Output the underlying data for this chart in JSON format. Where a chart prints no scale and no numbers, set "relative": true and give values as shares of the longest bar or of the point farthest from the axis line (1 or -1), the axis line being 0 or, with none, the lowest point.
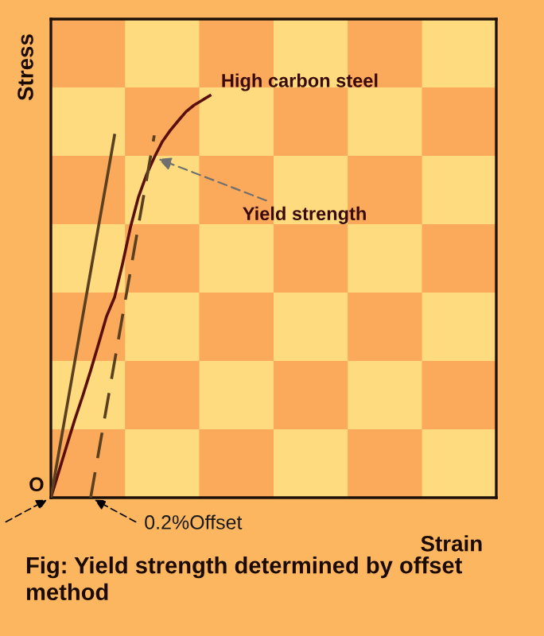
{
  "chart_data": {
    "type": "line",
    "relative": true,
    "xlabel": "Strain",
    "ylabel": "Stress",
    "categories": [
      null,
      null,
      null,
      null,
      null,
      null,
      null,
      null,
      null,
      null,
      null,
      null,
      null,
      null,
      null,
      null,
      null,
      null,
      null,
      null,
      null,
      null,
      null,
      null,
      null,
      null,
      null,
      null,
      null,
      null,
      null,
      null,
      null,
      null,
      null,
      null,
      null,
      null,
      null,
      null,
      null,
      null,
      null,
      null,
      null,
      null,
      null,
      null,
      null,
      null,
      null,
      null,
      null,
      null,
      null,
      null,
      null
    ],
    "series": [
      {
        "name": "High carbon steel",
        "color": "#5a0f0f",
        "line_style": "solid",
        "values": [
          0,
          0.065,
          0.13,
          0.194,
          0.253,
          0.316,
          0.383,
          0.451,
          0.498,
          0.581,
          0.672,
          0.747,
          0.802,
          0.846,
          0.885,
          0.913,
          0.937,
          0.96,
          0.976,
          0.988,
          1.0,
          null,
          null,
          null,
          null,
          null,
          null,
          null,
          null,
          null,
          null,
          null,
          null,
          null,
          null,
          null,
          null,
          null,
          null,
          null,
          null,
          null,
          null,
          null,
          null,
          null,
          null,
          null,
          null,
          null,
          null,
          null,
          null,
          null,
          null,
          null,
          null
        ]
      },
      {
        "color": "#5a4020",
        "line_style": "solid",
        "values": [
          0,
          0.113,
          0.225,
          0.338,
          0.451,
          0.563,
          0.676,
          0.788,
          0.901,
          null,
          null,
          null,
          null,
          null,
          null,
          null,
          null,
          null,
          null,
          null,
          null,
          null,
          null,
          null,
          null,
          null,
          null,
          null,
          null,
          null,
          null,
          null,
          null,
          null,
          null,
          null,
          null,
          null,
          null,
          null,
          null,
          null,
          null,
          null,
          null,
          null,
          null,
          null,
          null,
          null,
          null,
          null,
          null,
          null,
          null,
          null,
          null
        ]
      },
      {
        "color": "#5a4020",
        "line_style": "dashed",
        "values": [
          null,
          null,
          null,
          null,
          null,
          0,
          0.113,
          0.225,
          0.338,
          0.451,
          0.563,
          0.676,
          0.788,
          0.901,
          null,
          null,
          null,
          null,
          null,
          null,
          null,
          null,
          null,
          null,
          null,
          null,
          null,
          null,
          null,
          null,
          null,
          null,
          null,
          null,
          null,
          null,
          null,
          null,
          null,
          null,
          null,
          null,
          null,
          null,
          null,
          null,
          null,
          null,
          null,
          null,
          null,
          null,
          null,
          null,
          null,
          null,
          null
        ]
      }
    ],
    "annotations": [
      "Yield strength",
      "0.2%Offset",
      "O",
      "Fig: Yield strength determined by offset method"
    ]
  }
}
